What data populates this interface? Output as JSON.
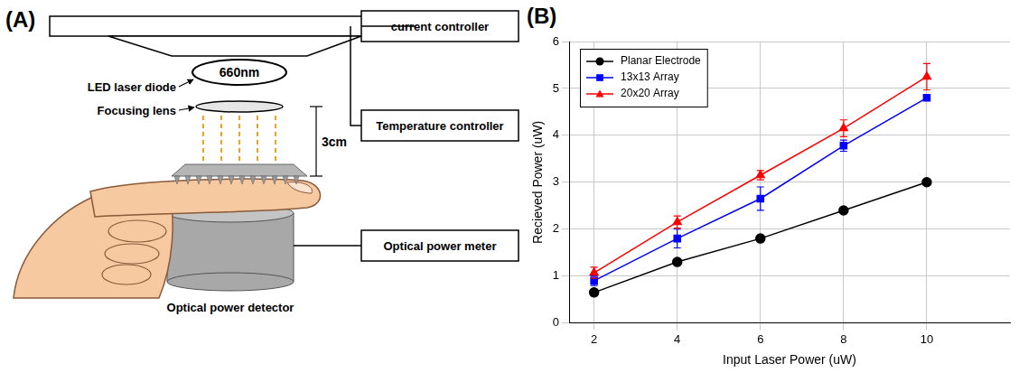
{
  "diagram": {
    "label": "(A)",
    "wavelength": "660nm",
    "source_label": "LED laser diode",
    "lens_label": "Focusing lens",
    "distance": "3cm",
    "controllers": [
      "current controller",
      "Temperature controller"
    ],
    "meter": "Optical power meter",
    "detector": "Optical power detector"
  },
  "chart_data": {
    "type": "line",
    "panel_label": "(B)",
    "x_label": "Input Laser Power (uW)",
    "y_label": "Recieved Power (uW)",
    "x": [
      2,
      4,
      6,
      8,
      10
    ],
    "series": [
      {
        "name": "Planar Electrode",
        "color": "#000000",
        "marker": "circle",
        "values": [
          0.65,
          1.3,
          1.8,
          2.4,
          3.0
        ]
      },
      {
        "name": "13x13 Array",
        "color": "#0000ff",
        "marker": "square",
        "values": [
          0.9,
          1.8,
          2.65,
          3.78,
          4.8
        ],
        "errors": [
          0.1,
          0.2,
          0.25,
          0.12,
          0.05
        ]
      },
      {
        "name": "20x20 Array",
        "color": "#ff0000",
        "marker": "triangle",
        "values": [
          1.07,
          2.15,
          3.15,
          4.15,
          5.25
        ],
        "errors": [
          0.12,
          0.13,
          0.1,
          0.18,
          0.28
        ]
      }
    ],
    "xlim": [
      1.4,
      12
    ],
    "xticks": [
      2,
      4,
      6,
      8,
      10
    ],
    "ylim": [
      0,
      6
    ],
    "yticks": [
      0,
      1,
      2,
      3,
      4,
      5,
      6
    ],
    "grid": true,
    "legend": "upper left"
  }
}
